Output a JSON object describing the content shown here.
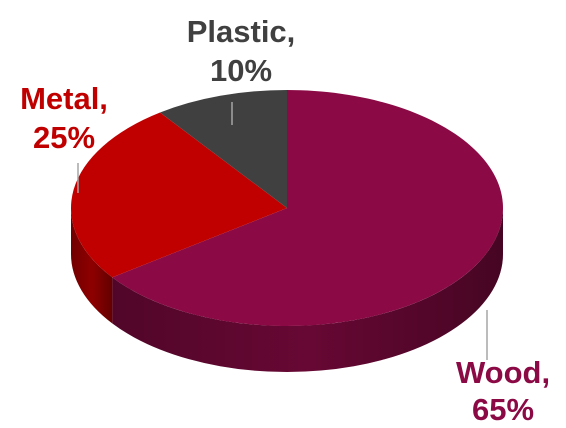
{
  "chart_data": {
    "type": "pie",
    "style": "3d",
    "slices": [
      {
        "name": "Wood",
        "value": 65,
        "label_line1": "Wood,",
        "label_line2": "65%",
        "color": "#8b0a45",
        "label_color": "#8b0a45"
      },
      {
        "name": "Metal",
        "value": 25,
        "label_line1": "Metal,",
        "label_line2": "25%",
        "color": "#c00000",
        "label_color": "#c00000"
      },
      {
        "name": "Plastic",
        "value": 10,
        "label_line1": "Plastic,",
        "label_line2": "10%",
        "color": "#404040",
        "label_color": "#404040"
      }
    ],
    "leader_color": "#a6a6a6"
  }
}
